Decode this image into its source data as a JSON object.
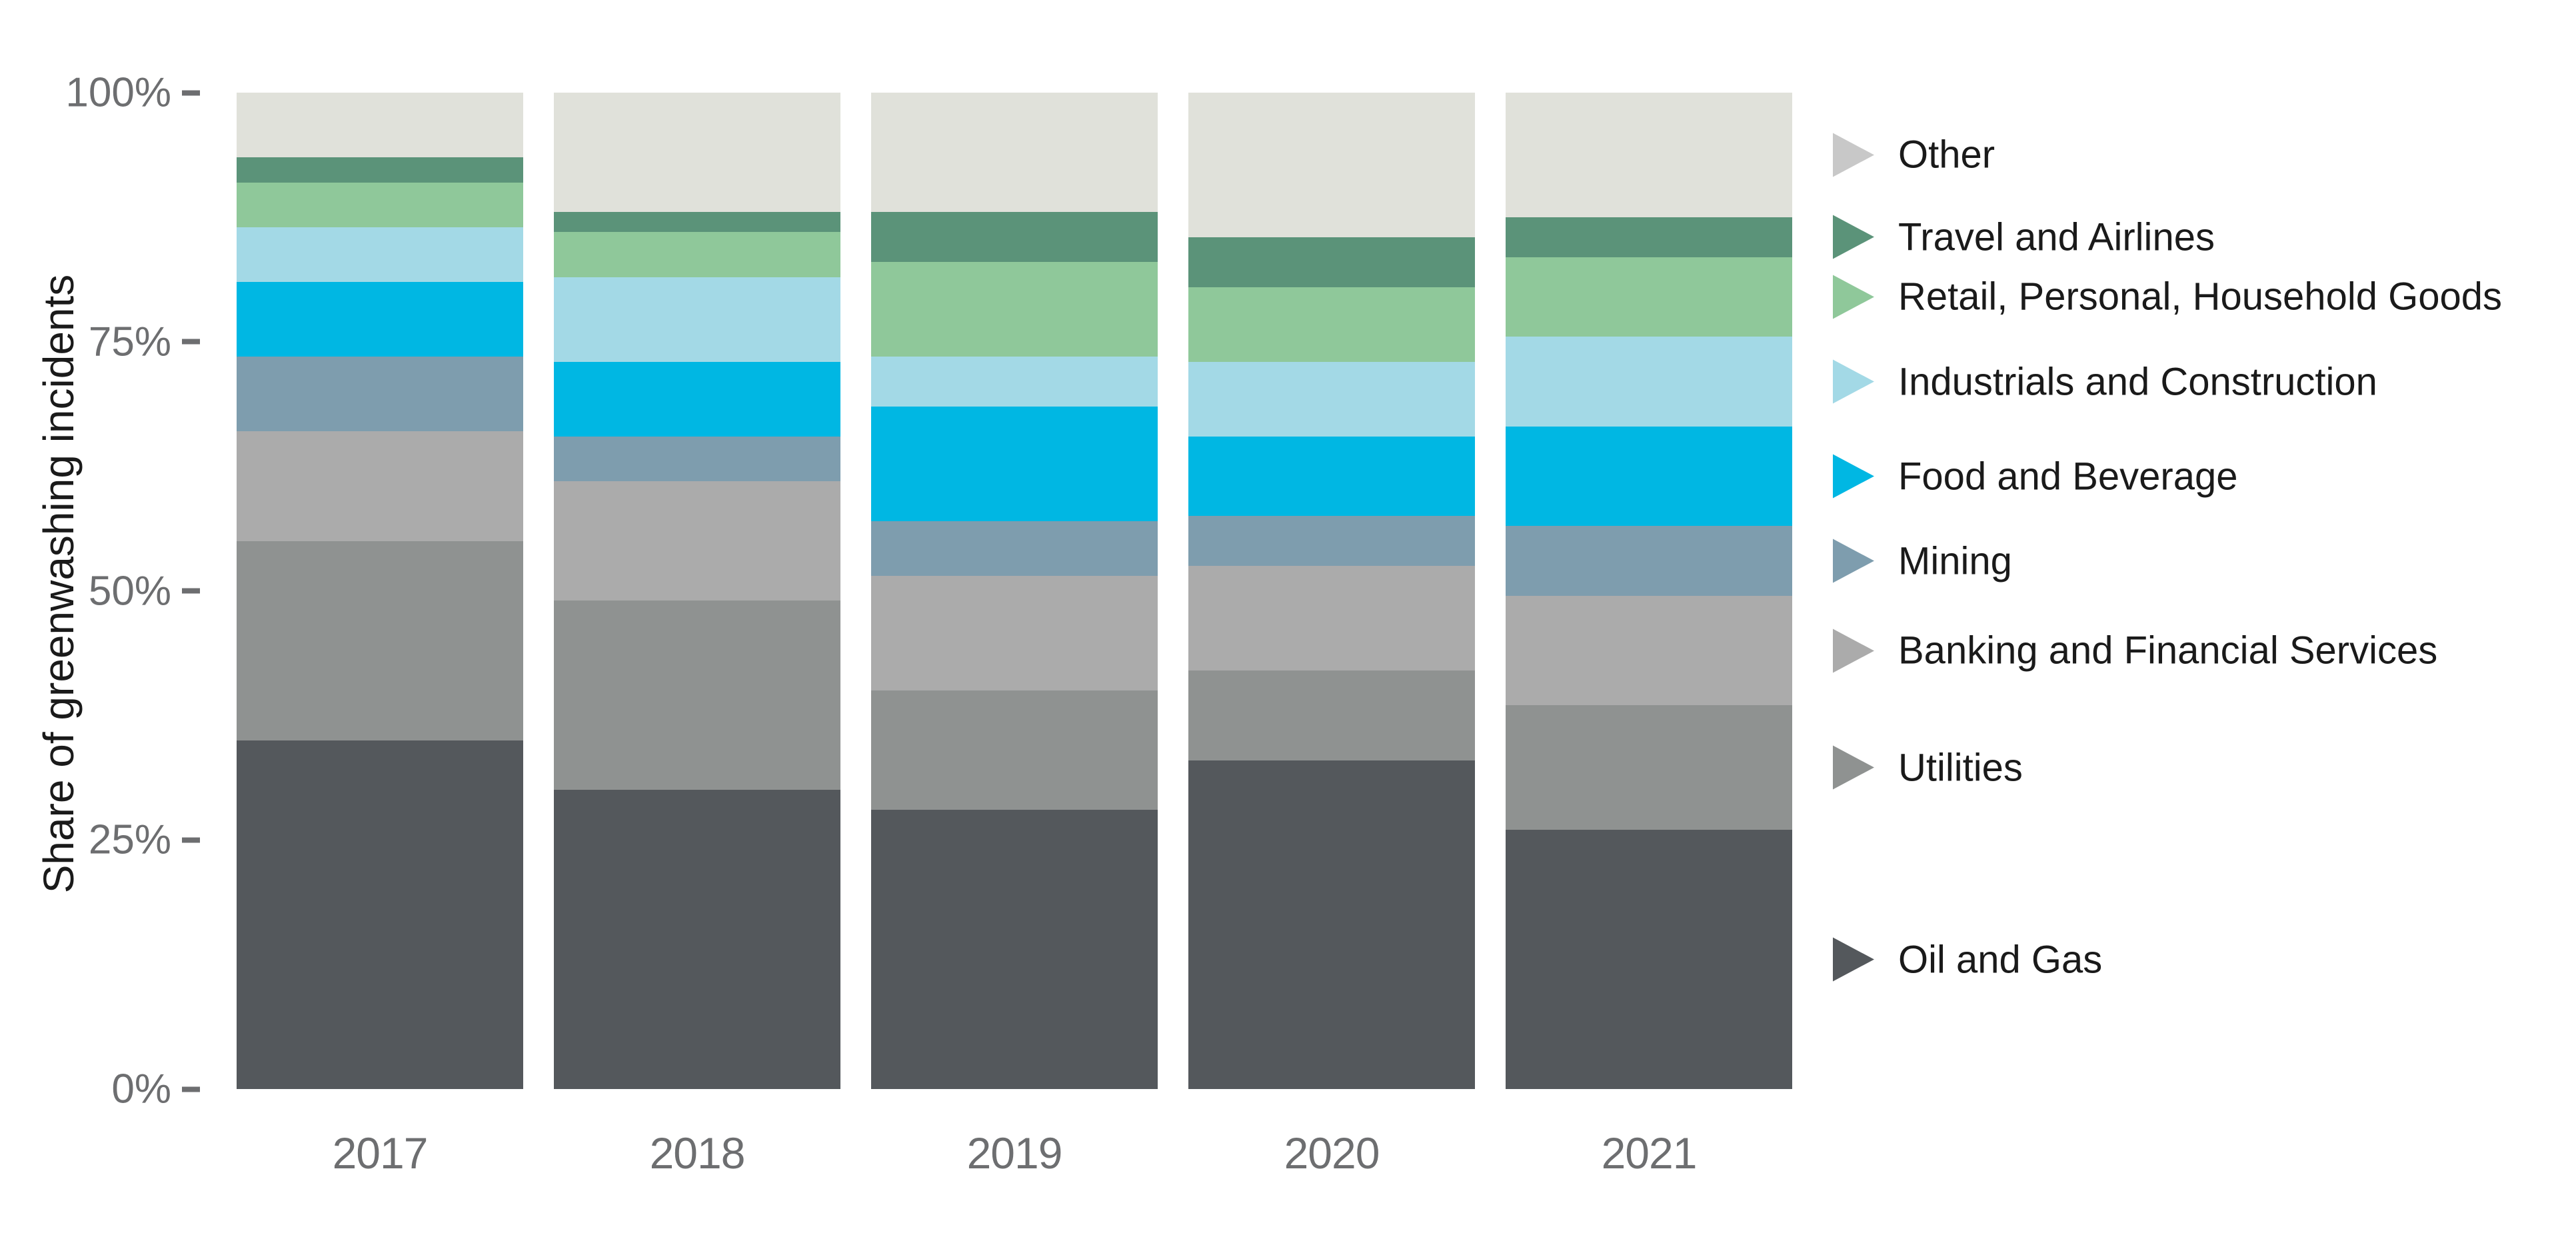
{
  "chart_data": {
    "type": "bar",
    "stacked": true,
    "orientation": "vertical",
    "title": "",
    "ylabel": "Share of greenwashing incidents",
    "xlabel": "",
    "categories": [
      "2017",
      "2018",
      "2019",
      "2020",
      "2021"
    ],
    "ylim": [
      0,
      100
    ],
    "grid": false,
    "legend_position": "right",
    "y_ticks": [
      {
        "label": "100%",
        "value": 100
      },
      {
        "label": "75%",
        "value": 75
      },
      {
        "label": "50%",
        "value": 50
      },
      {
        "label": "25%",
        "value": 25
      },
      {
        "label": "0%",
        "value": 0
      }
    ],
    "series_order_note": "listed top-to-bottom as stacked in each bar; values are percent of total per year",
    "series": [
      {
        "name": "Other",
        "color": "#e0e1da",
        "marker_color": "#c8c8c8",
        "values": [
          6.5,
          12.0,
          12.0,
          14.5,
          12.5
        ]
      },
      {
        "name": "Travel and Airlines",
        "color": "#5b9379",
        "marker_color": "#5b9379",
        "values": [
          2.5,
          2.0,
          5.0,
          5.0,
          4.0
        ]
      },
      {
        "name": "Retail, Personal, Household Goods",
        "color": "#8fc89a",
        "marker_color": "#8fc89a",
        "values": [
          4.5,
          4.5,
          9.5,
          7.5,
          8.0
        ]
      },
      {
        "name": "Industrials and Construction",
        "color": "#a3d9e6",
        "marker_color": "#a3d9e6",
        "values": [
          5.5,
          8.5,
          5.0,
          7.5,
          9.0
        ]
      },
      {
        "name": "Food and Beverage",
        "color": "#00b7e3",
        "marker_color": "#00b7e3",
        "values": [
          7.5,
          7.5,
          11.5,
          8.0,
          10.0
        ]
      },
      {
        "name": "Mining",
        "color": "#7e9dae",
        "marker_color": "#7e9dae",
        "values": [
          7.5,
          4.5,
          5.5,
          5.0,
          7.0
        ]
      },
      {
        "name": "Banking and Financial Services",
        "color": "#ababab",
        "marker_color": "#ababab",
        "values": [
          11.0,
          12.0,
          11.5,
          10.5,
          11.0
        ]
      },
      {
        "name": "Utilities",
        "color": "#8f9291",
        "marker_color": "#8f9291",
        "values": [
          20.0,
          19.0,
          12.0,
          9.0,
          12.5
        ]
      },
      {
        "name": "Oil and Gas",
        "color": "#54585c",
        "marker_color": "#54585c",
        "values": [
          35.0,
          30.0,
          28.0,
          33.0,
          26.0
        ]
      }
    ]
  },
  "colors": {
    "background": "#ffffff",
    "axis_text": "#6d6e70",
    "axis_title_text": "#1a1a1a",
    "legend_text": "#1a1a1a"
  }
}
